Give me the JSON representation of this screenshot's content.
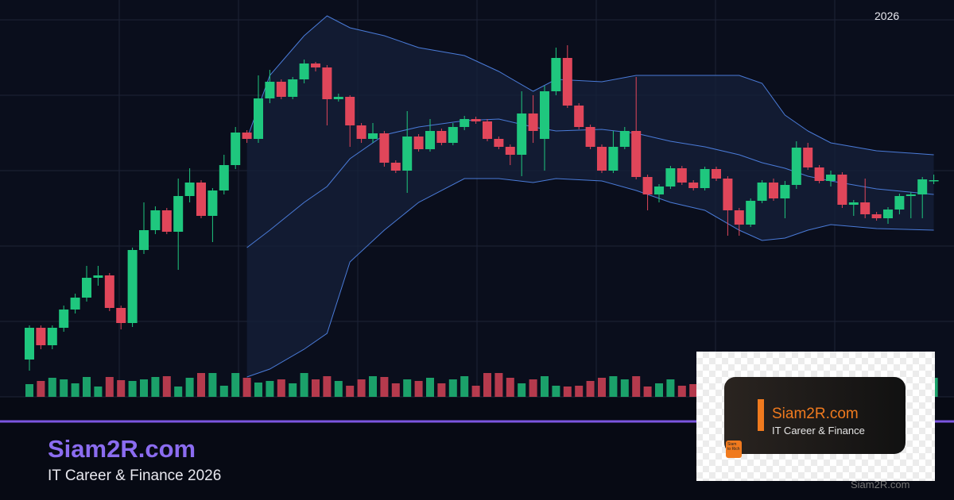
{
  "header": {
    "year_label": "2026"
  },
  "chart_data": {
    "type": "candlestick",
    "ylim": [
      0,
      500
    ],
    "volume_lim": [
      0,
      100
    ],
    "up_color": "#1fc77e",
    "down_color": "#e0465a",
    "open": [
      47,
      87,
      65,
      87,
      110,
      125,
      150,
      153,
      112,
      93,
      185,
      210,
      235,
      208,
      253,
      270,
      228,
      260,
      292,
      333,
      325,
      376,
      397,
      378,
      400,
      420,
      415,
      375,
      378,
      342,
      325,
      332,
      295,
      285,
      328,
      312,
      335,
      320,
      340,
      350,
      347,
      325,
      315,
      305,
      357,
      325,
      385,
      427,
      367,
      340,
      315,
      285,
      315,
      335,
      277,
      255,
      265,
      288,
      270,
      263,
      287,
      275,
      235,
      217,
      247,
      270,
      250,
      267,
      314,
      289,
      272,
      280,
      242,
      245,
      230,
      225,
      236,
      253,
      255,
      272
    ],
    "high": [
      90,
      90,
      90,
      115,
      130,
      165,
      165,
      156,
      115,
      188,
      245,
      240,
      238,
      275,
      288,
      273,
      263,
      305,
      340,
      336,
      405,
      412,
      400,
      403,
      425,
      422,
      418,
      382,
      380,
      345,
      345,
      335,
      298,
      360,
      331,
      350,
      338,
      345,
      354,
      353,
      350,
      328,
      318,
      385,
      380,
      392,
      440,
      443,
      370,
      343,
      318,
      335,
      340,
      403,
      280,
      268,
      291,
      291,
      273,
      290,
      290,
      278,
      238,
      250,
      273,
      275,
      272,
      322,
      320,
      292,
      285,
      283,
      248,
      275,
      233,
      239,
      256,
      258,
      277,
      280
    ],
    "low": [
      33,
      60,
      60,
      82,
      105,
      120,
      140,
      108,
      85,
      88,
      180,
      205,
      205,
      160,
      245,
      225,
      195,
      255,
      287,
      320,
      320,
      370,
      375,
      375,
      395,
      410,
      342,
      372,
      315,
      320,
      320,
      290,
      282,
      257,
      309,
      309,
      317,
      317,
      336,
      344,
      322,
      312,
      292,
      278,
      320,
      285,
      380,
      364,
      337,
      312,
      282,
      282,
      312,
      274,
      235,
      245,
      262,
      267,
      260,
      260,
      272,
      203,
      203,
      214,
      244,
      247,
      225,
      262,
      286,
      269,
      265,
      238,
      228,
      225,
      222,
      218,
      230,
      225,
      225,
      268
    ],
    "close": [
      87,
      65,
      87,
      110,
      125,
      150,
      153,
      112,
      93,
      185,
      210,
      235,
      208,
      253,
      270,
      228,
      260,
      292,
      333,
      325,
      376,
      397,
      378,
      400,
      420,
      415,
      375,
      378,
      342,
      325,
      332,
      295,
      285,
      328,
      312,
      335,
      320,
      340,
      350,
      347,
      325,
      315,
      305,
      357,
      335,
      385,
      427,
      367,
      340,
      315,
      285,
      315,
      335,
      277,
      255,
      265,
      288,
      270,
      263,
      287,
      275,
      235,
      217,
      247,
      270,
      250,
      267,
      314,
      289,
      272,
      280,
      242,
      245,
      230,
      225,
      236,
      253,
      255,
      274,
      273
    ],
    "volume": [
      16,
      20,
      24,
      22,
      17,
      25,
      13,
      25,
      21,
      20,
      22,
      25,
      26,
      13,
      24,
      30,
      30,
      14,
      30,
      24,
      18,
      20,
      22,
      17,
      30,
      22,
      26,
      20,
      14,
      22,
      26,
      25,
      17,
      22,
      20,
      24,
      17,
      22,
      26,
      14,
      30,
      30,
      24,
      17,
      22,
      26,
      14,
      13,
      14,
      20,
      24,
      26,
      22,
      26,
      13,
      17,
      22,
      14,
      16,
      26,
      14,
      22,
      20,
      30,
      26,
      22,
      14,
      24,
      24,
      28,
      17,
      21,
      18,
      20,
      26,
      22,
      20,
      25,
      14,
      24
    ],
    "bands": {
      "color": "#4a7bd8",
      "x": [
        19,
        21,
        24,
        26,
        28,
        31,
        34,
        38,
        41,
        44,
        46,
        50,
        53,
        56,
        59,
        62,
        64,
        66,
        68,
        70,
        74,
        79
      ],
      "upper": [
        325,
        405,
        455,
        480,
        465,
        455,
        440,
        430,
        410,
        385,
        400,
        397,
        405,
        405,
        405,
        405,
        395,
        355,
        335,
        320,
        310,
        305
      ],
      "middle": [
        188,
        210,
        245,
        265,
        300,
        330,
        340,
        348,
        350,
        340,
        335,
        337,
        332,
        322,
        315,
        305,
        295,
        288,
        278,
        272,
        262,
        255
      ],
      "lower": [
        25,
        35,
        60,
        80,
        170,
        210,
        245,
        275,
        275,
        270,
        275,
        272,
        260,
        245,
        235,
        210,
        197,
        200,
        210,
        217,
        212,
        210
      ]
    }
  },
  "footer": {
    "brand": "Siam2R.com",
    "tagline": "IT Career & Finance 2026"
  },
  "logo": {
    "brand": "Siam2R.com",
    "tagline": "IT Career & Finance",
    "badge_line1": "Siam",
    "badge_line2": "to Rich"
  },
  "watermark": "Siam2R.com"
}
